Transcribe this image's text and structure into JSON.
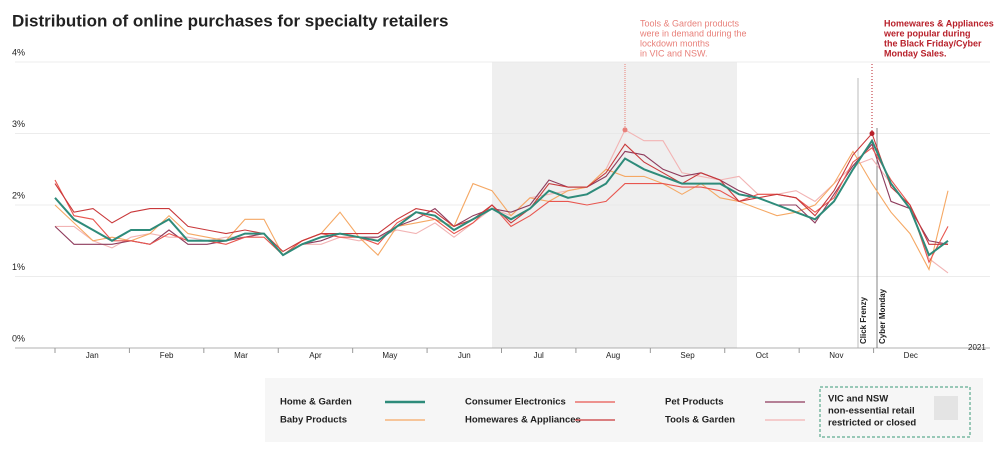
{
  "chart_data": {
    "type": "line",
    "title": "Distribution of online purchases for specialty retailers",
    "categories": [
      null,
      null,
      null,
      null,
      null,
      null,
      null,
      null,
      null,
      null,
      null,
      null,
      null,
      null,
      null,
      null,
      null,
      null,
      null,
      null,
      null,
      null,
      null,
      null,
      null,
      null,
      null,
      null,
      null,
      null,
      null,
      null,
      null,
      null,
      null,
      null,
      null,
      null,
      null,
      null,
      null,
      null,
      null,
      null,
      null,
      null,
      null,
      null
    ],
    "months": [
      "Jan",
      "Feb",
      "Mar",
      "Apr",
      "May",
      "Jun",
      "Jul",
      "Aug",
      "Sep",
      "Oct",
      "Nov",
      "Dec"
    ],
    "end_label": "2021",
    "ylim": [
      0,
      4
    ],
    "yticks": [
      {
        "value": 0,
        "label": "0%"
      },
      {
        "value": 1,
        "label": "1%"
      },
      {
        "value": 2,
        "label": "2%"
      },
      {
        "value": 3,
        "label": "3%"
      },
      {
        "value": 4,
        "label": "4%"
      }
    ],
    "series": [
      {
        "name": "Home & Garden",
        "color": "#2e8b7a",
        "values": [
          2.1,
          1.8,
          1.65,
          1.5,
          1.65,
          1.65,
          1.8,
          1.5,
          1.5,
          1.5,
          1.6,
          1.6,
          1.3,
          1.45,
          1.55,
          1.6,
          1.55,
          1.5,
          1.7,
          1.9,
          1.85,
          1.65,
          1.8,
          1.95,
          1.8,
          1.95,
          2.2,
          2.1,
          2.15,
          2.3,
          2.65,
          2.5,
          2.4,
          2.3,
          2.3,
          2.3,
          2.15,
          2.1,
          2.0,
          1.9,
          1.8,
          2.05,
          2.5,
          2.9,
          2.3,
          1.95,
          1.3,
          1.5
        ]
      },
      {
        "name": "Baby Products",
        "color": "#f5a864",
        "values": [
          2.0,
          1.75,
          1.5,
          1.55,
          1.5,
          1.6,
          1.85,
          1.6,
          1.55,
          1.5,
          1.8,
          1.8,
          1.3,
          1.5,
          1.6,
          1.9,
          1.55,
          1.3,
          1.7,
          1.75,
          1.8,
          1.7,
          2.3,
          2.2,
          1.85,
          2.1,
          2.05,
          2.2,
          2.25,
          2.5,
          2.4,
          2.4,
          2.3,
          2.15,
          2.3,
          2.1,
          2.05,
          1.95,
          1.85,
          1.9,
          2.0,
          2.3,
          2.75,
          2.3,
          1.9,
          1.6,
          1.1,
          2.2
        ]
      },
      {
        "name": "Consumer Electronics",
        "color": "#e8564f",
        "values": [
          2.35,
          1.85,
          1.8,
          1.5,
          1.5,
          1.45,
          1.6,
          1.5,
          1.5,
          1.45,
          1.55,
          1.55,
          1.3,
          1.5,
          1.6,
          1.55,
          1.55,
          1.45,
          1.75,
          1.9,
          1.8,
          1.6,
          1.75,
          2.0,
          1.7,
          1.85,
          2.05,
          2.05,
          2.0,
          2.05,
          2.3,
          2.3,
          2.3,
          2.25,
          2.25,
          2.2,
          2.05,
          2.15,
          2.15,
          2.1,
          1.9,
          2.1,
          2.6,
          2.8,
          2.35,
          2.0,
          1.2,
          1.7
        ]
      },
      {
        "name": "Homewares & Appliances",
        "color": "#c9383a",
        "values": [
          2.3,
          1.9,
          1.95,
          1.75,
          1.9,
          1.95,
          1.95,
          1.7,
          1.65,
          1.6,
          1.65,
          1.6,
          1.35,
          1.5,
          1.6,
          1.6,
          1.6,
          1.6,
          1.8,
          1.95,
          1.9,
          1.7,
          1.8,
          2.0,
          1.75,
          1.95,
          2.3,
          2.25,
          2.25,
          2.45,
          2.85,
          2.6,
          2.45,
          2.3,
          2.45,
          2.35,
          2.05,
          2.1,
          2.15,
          2.1,
          1.85,
          2.2,
          2.7,
          3.0,
          2.25,
          2.0,
          1.45,
          1.45
        ]
      },
      {
        "name": "Pet Products",
        "color": "#8e3b5c",
        "values": [
          1.7,
          1.45,
          1.45,
          1.45,
          1.5,
          1.45,
          1.65,
          1.45,
          1.45,
          1.5,
          1.55,
          1.6,
          1.3,
          1.45,
          1.5,
          1.6,
          1.55,
          1.55,
          1.7,
          1.8,
          1.95,
          1.7,
          1.85,
          1.95,
          1.9,
          2.0,
          2.35,
          2.25,
          2.25,
          2.4,
          2.75,
          2.7,
          2.5,
          2.4,
          2.45,
          2.35,
          2.2,
          2.1,
          2.0,
          2.0,
          1.75,
          2.15,
          2.55,
          2.85,
          2.05,
          1.95,
          1.5,
          1.45
        ]
      },
      {
        "name": "Tools & Garden",
        "color": "#f2b4b4",
        "values": [
          1.7,
          1.7,
          1.5,
          1.4,
          1.55,
          1.6,
          1.55,
          1.55,
          1.5,
          1.55,
          1.55,
          1.6,
          1.3,
          1.45,
          1.45,
          1.55,
          1.5,
          1.55,
          1.65,
          1.6,
          1.75,
          1.55,
          1.75,
          1.95,
          1.85,
          2.1,
          2.15,
          2.2,
          2.25,
          2.5,
          3.05,
          2.9,
          2.9,
          2.45,
          2.4,
          2.35,
          2.4,
          2.15,
          2.15,
          2.2,
          2.05,
          2.3,
          2.55,
          2.65,
          2.3,
          1.95,
          1.25,
          1.05
        ]
      }
    ],
    "annotations": [
      {
        "lines": [
          "Tools & Garden products",
          "were in demand during the",
          "lockdown months",
          "in VIC and NSW."
        ]
      },
      {
        "lines": [
          "Homewares & Appliances",
          "were popular during",
          "the Black Friday/Cyber",
          "Monday Sales."
        ]
      }
    ],
    "events": [
      "Click Frenzy",
      "Cyber Monday"
    ],
    "restriction_label": [
      "VIC and NSW",
      "non-essential retail",
      "restricted or closed"
    ]
  }
}
